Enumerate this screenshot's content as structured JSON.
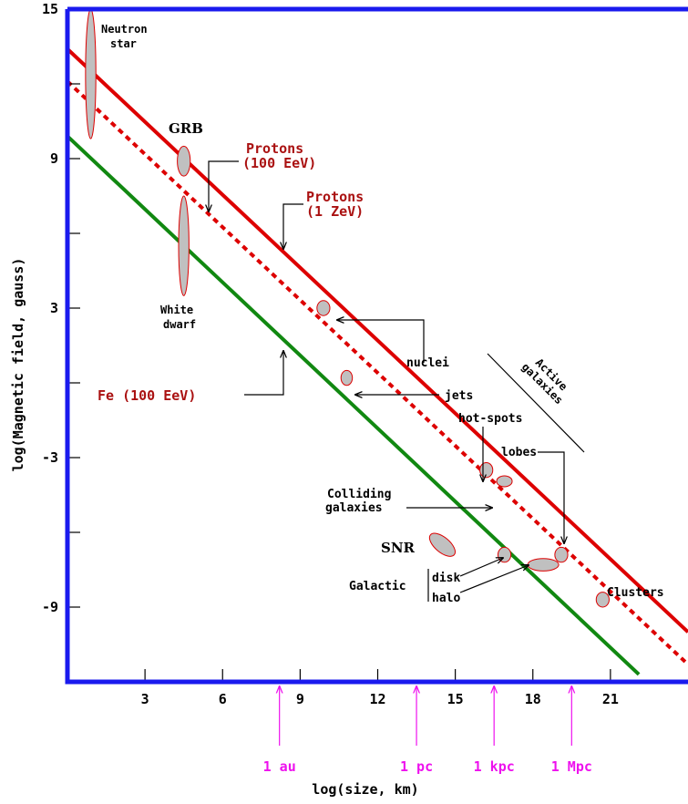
{
  "chart_data": {
    "type": "line",
    "title": "",
    "xlabel": "log(size, km)",
    "ylabel": "log(Magnetic field, gauss)",
    "xlim": [
      0,
      24
    ],
    "ylim": [
      -12,
      15
    ],
    "x_ticks": [
      3,
      6,
      9,
      12,
      15,
      18,
      21
    ],
    "x_tick_labels": [
      "3",
      "6",
      "9",
      "12",
      "15",
      "18",
      "21"
    ],
    "y_ticks": [
      -9,
      -3,
      3,
      9,
      15
    ],
    "y_tick_labels": [
      "-9",
      "-3",
      "3",
      "9",
      "15"
    ],
    "y_minor_ticks": [
      -6,
      0,
      6,
      12
    ],
    "x_scale_markers": [
      {
        "label": "1 au",
        "x": 8.2
      },
      {
        "label": "1 pc",
        "x": 13.5
      },
      {
        "label": "1 kpc",
        "x": 16.5
      },
      {
        "label": "1 Mpc",
        "x": 19.5
      }
    ],
    "series": [
      {
        "name": "Protons (1 ZeV)",
        "color": "#dd0000",
        "style": "solid",
        "x": [
          0,
          24
        ],
        "y": [
          13.4,
          -10.0
        ]
      },
      {
        "name": "Protons (100 EeV)",
        "color": "#dd0000",
        "style": "dotted",
        "x": [
          0,
          24
        ],
        "y": [
          12.1,
          -11.3
        ]
      },
      {
        "name": "Fe (100 EeV)",
        "color": "#118811",
        "style": "solid",
        "x": [
          0,
          22.1
        ],
        "y": [
          9.9,
          -11.7
        ]
      }
    ],
    "objects": [
      {
        "name": "Neutron star",
        "x": 0.9,
        "y": 12.4,
        "rx": 0.2,
        "ry": 2.6
      },
      {
        "name": "GRB",
        "x": 4.5,
        "y": 8.9,
        "rx": 0.25,
        "ry": 0.6
      },
      {
        "name": "White dwarf",
        "x": 4.5,
        "y": 5.5,
        "rx": 0.2,
        "ry": 2.0
      },
      {
        "name": "nuclei",
        "x": 9.9,
        "y": 3.0,
        "rx": 0.25,
        "ry": 0.3
      },
      {
        "name": "jets",
        "x": 10.8,
        "y": 0.2,
        "rx": 0.22,
        "ry": 0.3
      },
      {
        "name": "hot-spots",
        "x": 16.2,
        "y": -3.5,
        "rx": 0.25,
        "ry": 0.3
      },
      {
        "name": "Colliding galaxies",
        "x": 16.9,
        "y": -3.95,
        "rx": 0.3,
        "ry": 0.22
      },
      {
        "name": "SNR",
        "x": 14.5,
        "y": -6.5,
        "rx": 0.6,
        "ry": 0.3,
        "rot": 40
      },
      {
        "name": "disk",
        "x": 16.9,
        "y": -6.9,
        "rx": 0.25,
        "ry": 0.3
      },
      {
        "name": "halo",
        "x": 18.4,
        "y": -7.3,
        "rx": 0.6,
        "ry": 0.25
      },
      {
        "name": "lobes",
        "x": 19.1,
        "y": -6.9,
        "rx": 0.25,
        "ry": 0.3
      },
      {
        "name": "Clusters",
        "x": 20.7,
        "y": -8.7,
        "rx": 0.25,
        "ry": 0.3
      }
    ],
    "annotations": {
      "neutron_star": [
        "Neutron",
        "star"
      ],
      "grb": "GRB",
      "white_dwarf": [
        "White",
        "dwarf"
      ],
      "protons_100eev": [
        "Protons",
        "(100 EeV)"
      ],
      "protons_1zev": [
        "Protons",
        "(1 ZeV)"
      ],
      "fe_100eev": "Fe (100 EeV)",
      "nuclei": "nuclei",
      "jets": "jets",
      "hot_spots": "hot-spots",
      "active_galaxies": [
        "Active",
        "galaxies"
      ],
      "lobes": "lobes",
      "colliding_galaxies": [
        "Colliding",
        "galaxies"
      ],
      "snr": "SNR",
      "galactic": "Galactic",
      "disk": "disk",
      "halo": "halo",
      "clusters": "Clusters"
    },
    "colors": {
      "frame": "#1a1aee",
      "protons": "#dd0000",
      "fe": "#118811",
      "label_red": "#aa1111",
      "marker_magenta": "#ee11ee",
      "ellipse_fill": "#c0c0c0",
      "ellipse_stroke": "#dd0000"
    }
  }
}
